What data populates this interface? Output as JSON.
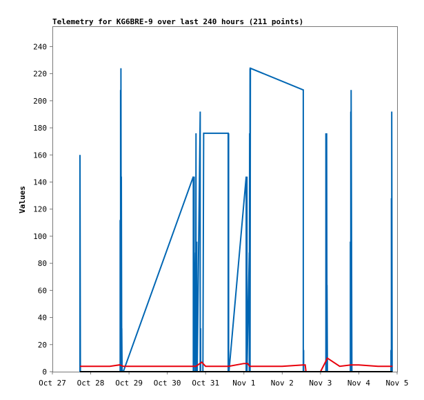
{
  "chart_data": {
    "type": "line",
    "title": "Telemetry for KG6BRE-9 over last 240 hours (211 points)",
    "xlabel": "",
    "ylabel": "Values",
    "x_ticks": [
      "Oct 27",
      "Oct 28",
      "Oct 29",
      "Oct 30",
      "Oct 31",
      "Nov 1",
      "Nov 2",
      "Nov 3",
      "Nov 4",
      "Nov 5"
    ],
    "xlim": [
      0,
      9
    ],
    "ylim": [
      0,
      255
    ],
    "y_ticks": [
      0,
      20,
      40,
      60,
      80,
      100,
      120,
      140,
      160,
      180,
      200,
      220,
      240
    ],
    "grid": false,
    "legend": "none",
    "series": [
      {
        "color": "#0066b3",
        "x": [
          0.72,
          0.72,
          0.73,
          1.77,
          1.77,
          1.78,
          1.78,
          1.79,
          1.79,
          1.8,
          1.8,
          1.81,
          1.81,
          1.82,
          1.82,
          1.83,
          1.84,
          1.85,
          3.68,
          3.68,
          3.69,
          3.69,
          3.7,
          3.7,
          3.74,
          3.74,
          3.75,
          3.75,
          3.77,
          3.77,
          3.78,
          3.86,
          3.86,
          3.87,
          3.87,
          3.88,
          3.88,
          3.9,
          3.91,
          3.91,
          3.93,
          3.93,
          3.95,
          4.59,
          4.59,
          4.6,
          4.6,
          4.61,
          5.06,
          5.06,
          5.08,
          5.08,
          5.14,
          5.14,
          5.15,
          5.15,
          5.16,
          5.16,
          5.17,
          6.55,
          6.55,
          6.56,
          6.56,
          6.57,
          6.58,
          7.14,
          7.14,
          7.16,
          7.16,
          7.17,
          7.17,
          7.18,
          7.78,
          7.78,
          7.79,
          7.79,
          7.8,
          7.8,
          7.82,
          7.82,
          7.83,
          8.84,
          8.84,
          8.85,
          8.85,
          8.86,
          8.86,
          8.87,
          8.87,
          8.88
        ],
        "y": [
          0,
          160,
          0,
          0,
          112,
          0,
          208,
          0,
          224,
          0,
          144,
          0,
          32,
          0,
          0,
          0,
          0,
          0,
          144,
          0,
          144,
          0,
          144,
          0,
          88,
          0,
          176,
          0,
          96,
          0,
          0,
          192,
          0,
          32,
          0,
          0,
          0,
          0,
          0,
          0,
          0,
          0,
          176,
          176,
          0,
          176,
          0,
          0,
          144,
          0,
          144,
          0,
          88,
          0,
          176,
          0,
          224,
          0,
          224,
          208,
          0,
          16,
          0,
          0,
          0,
          0,
          176,
          0,
          176,
          0,
          64,
          0,
          0,
          96,
          0,
          192,
          0,
          208,
          0,
          0,
          0,
          0,
          16,
          0,
          128,
          0,
          192,
          0,
          0,
          0
        ]
      },
      {
        "color": "#e8000b",
        "x": [
          0.72,
          1.0,
          1.5,
          1.75,
          1.85,
          2.5,
          3.0,
          3.7,
          3.75,
          3.8,
          3.85,
          3.9,
          4.0,
          4.5,
          4.6,
          5.0,
          5.1,
          5.15,
          5.5,
          6.0,
          6.55,
          6.6,
          6.62,
          7.0,
          7.18,
          7.5,
          7.8,
          8.0,
          8.5,
          8.88
        ],
        "y": [
          4,
          4,
          4,
          5,
          4,
          4,
          4,
          4,
          4,
          5,
          6,
          7,
          4,
          4,
          4,
          6,
          6,
          4,
          4,
          4,
          5,
          5,
          0,
          0,
          10,
          4,
          5,
          5,
          4,
          4
        ]
      },
      {
        "color": "#000000",
        "x": [
          0.72,
          8.88
        ],
        "y": [
          0,
          0
        ]
      }
    ]
  }
}
